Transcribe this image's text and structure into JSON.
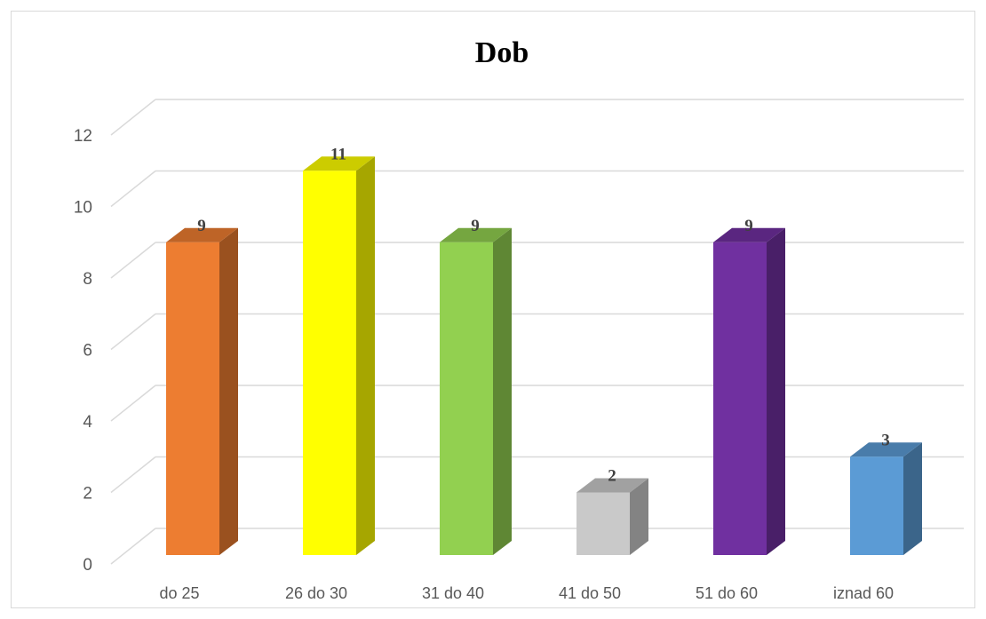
{
  "chart_data": {
    "type": "bar",
    "title": "Dob",
    "categories": [
      "do 25",
      "26 do 30",
      "31 do 40",
      "41 do 50",
      "51 do 60",
      "iznad 60"
    ],
    "values": [
      9,
      11,
      9,
      2,
      9,
      3
    ],
    "ylim": [
      0,
      12
    ],
    "yticks": [
      "0",
      "2",
      "4",
      "6",
      "8",
      "10",
      "12"
    ],
    "data_labels": [
      "9",
      "11",
      "9",
      "2",
      "9",
      "3"
    ],
    "grid": true,
    "style": "3d-column",
    "colors": {
      "front": [
        "#ED7D31",
        "#FFFF00",
        "#92D050",
        "#C9C9C9",
        "#7030A0",
        "#5B9BD5"
      ],
      "side": [
        "#9A511F",
        "#A6A600",
        "#5F8734",
        "#838383",
        "#491F68",
        "#3B658A"
      ],
      "top": [
        "#BE6427",
        "#CCCC00",
        "#75A640",
        "#A1A1A1",
        "#5A2680",
        "#497CAA"
      ]
    }
  }
}
